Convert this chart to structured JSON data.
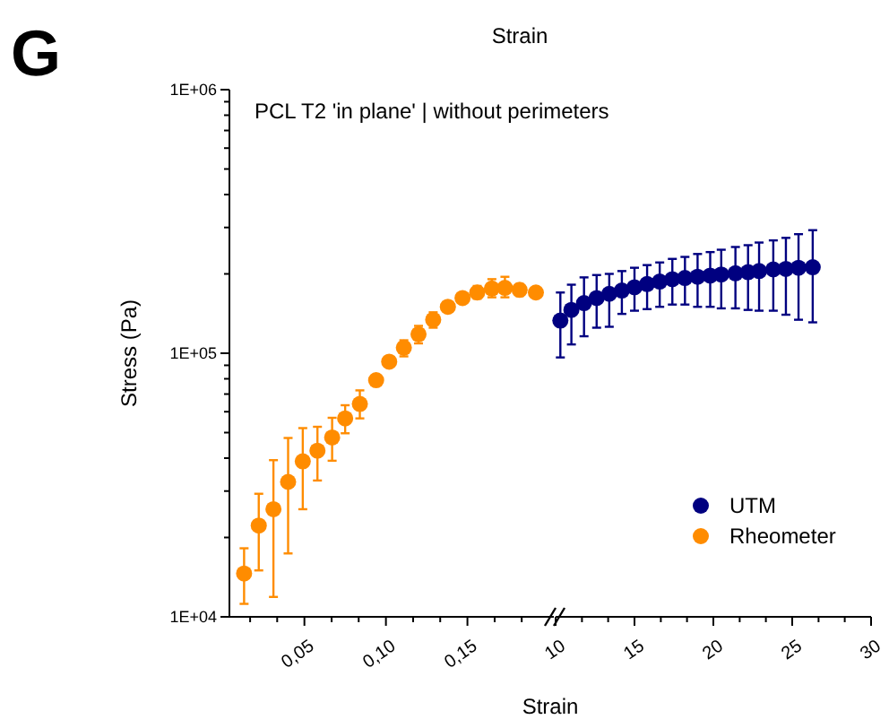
{
  "chart_data": [
    {
      "type": "scatter",
      "title": "PCL T2 'in plane' | without perimeters",
      "xlabel": "Strain",
      "ylabel": "Stress (Pa)",
      "log": "y",
      "marker": "circle",
      "annotations": [
        "G",
        "Strain"
      ],
      "xlim": [
        0.004,
        0.203
      ],
      "xticks": [
        {
          "value": 0.0167,
          "label": null
        },
        {
          "value": 0.0333,
          "label": null
        },
        {
          "value": 0.05,
          "label": "0,05"
        },
        {
          "value": 0.0667,
          "label": null
        },
        {
          "value": 0.0833,
          "label": null
        },
        {
          "value": 0.1,
          "label": "0,10"
        },
        {
          "value": 0.1167,
          "label": null
        },
        {
          "value": 0.1333,
          "label": null
        },
        {
          "value": 0.15,
          "label": "0,15"
        },
        {
          "value": 0.1667,
          "label": null
        },
        {
          "value": 0.1833,
          "label": null
        }
      ],
      "ylim": [
        10000,
        1000000
      ],
      "yticks": [
        {
          "value": 10000,
          "label": "1E+04"
        },
        {
          "value": 20000,
          "label": null
        },
        {
          "value": 30000,
          "label": null
        },
        {
          "value": 40000,
          "label": null
        },
        {
          "value": 50000,
          "label": null
        },
        {
          "value": 60000,
          "label": null
        },
        {
          "value": 70000,
          "label": null
        },
        {
          "value": 80000,
          "label": null
        },
        {
          "value": 90000,
          "label": null
        },
        {
          "value": 100000,
          "label": "1E+05"
        },
        {
          "value": 200000,
          "label": null
        },
        {
          "value": 300000,
          "label": null
        },
        {
          "value": 400000,
          "label": null
        },
        {
          "value": 500000,
          "label": null
        },
        {
          "value": 600000,
          "label": null
        },
        {
          "value": 700000,
          "label": null
        },
        {
          "value": 800000,
          "label": null
        },
        {
          "value": 900000,
          "label": null
        },
        {
          "value": 1000000,
          "label": "1E+06"
        }
      ],
      "series": [
        {
          "name": "Rheometer",
          "color": "#ff8c00",
          "x": [
            0.013,
            0.022,
            0.031,
            0.04,
            0.049,
            0.058,
            0.067,
            0.075,
            0.084,
            0.094,
            0.102,
            0.111,
            0.12,
            0.129,
            0.138,
            0.147,
            0.156,
            0.165,
            0.173,
            0.182,
            0.192
          ],
          "values": [
            14600,
            22200,
            25600,
            32500,
            38900,
            42700,
            47900,
            56600,
            64200,
            79000,
            92900,
            105000,
            118000,
            134000,
            150000,
            162000,
            170000,
            176000,
            177000,
            174000,
            170000
          ],
          "errors": [
            [
              11200,
              18200
            ],
            [
              15000,
              29300
            ],
            [
              11900,
              39300
            ],
            [
              17400,
              47700
            ],
            [
              25600,
              52000
            ],
            [
              32900,
              52600
            ],
            [
              39100,
              56900
            ],
            [
              49700,
              63500
            ],
            [
              56600,
              72300
            ],
            null,
            null,
            [
              97300,
              112000
            ],
            [
              109000,
              127000
            ],
            [
              125000,
              143000
            ],
            null,
            null,
            [
              161000,
              180000
            ],
            [
              163000,
              191000
            ],
            [
              163000,
              195000
            ],
            [
              165000,
              183000
            ],
            null
          ]
        }
      ]
    },
    {
      "type": "scatter",
      "log": "y",
      "marker": "circle",
      "legend": "bottom right",
      "tick_labels": "x",
      "xlim": [
        10,
        30
      ],
      "xticks": [
        {
          "value": 10,
          "label": "10"
        },
        {
          "value": 11.67,
          "label": null
        },
        {
          "value": 13.33,
          "label": null
        },
        {
          "value": 15,
          "label": "15"
        },
        {
          "value": 16.67,
          "label": null
        },
        {
          "value": 18.33,
          "label": null
        },
        {
          "value": 20,
          "label": "20"
        },
        {
          "value": 21.67,
          "label": null
        },
        {
          "value": 23.33,
          "label": null
        },
        {
          "value": 25,
          "label": "25"
        },
        {
          "value": 26.67,
          "label": null
        },
        {
          "value": 28.33,
          "label": null
        },
        {
          "value": 30,
          "label": "30"
        }
      ],
      "ylim": [
        10000,
        1000000
      ],
      "series": [
        {
          "name": "UTM",
          "color": "#000080",
          "x": [
            10.3,
            11.0,
            11.8,
            12.6,
            13.4,
            14.2,
            15.0,
            15.8,
            16.6,
            17.4,
            18.2,
            19.0,
            19.8,
            20.5,
            21.4,
            22.2,
            22.9,
            23.8,
            24.6,
            25.4,
            26.3
          ],
          "values": [
            133000,
            146000,
            155000,
            162000,
            168000,
            173000,
            178000,
            183000,
            187000,
            191000,
            193000,
            195000,
            197000,
            199000,
            201000,
            203000,
            205000,
            208000,
            209000,
            211000,
            212000
          ],
          "errors": [
            [
              96400,
              170000
            ],
            [
              108000,
              182000
            ],
            [
              116000,
              194000
            ],
            [
              125000,
              198000
            ],
            [
              126000,
              200000
            ],
            [
              141000,
              205000
            ],
            [
              145000,
              211000
            ],
            [
              147000,
              216000
            ],
            [
              150000,
              221000
            ],
            [
              153000,
              228000
            ],
            [
              153000,
              232000
            ],
            [
              150000,
              238000
            ],
            [
              150000,
              242000
            ],
            [
              148000,
              247000
            ],
            [
              148000,
              253000
            ],
            [
              146000,
              257000
            ],
            [
              145000,
              263000
            ],
            [
              145000,
              268000
            ],
            [
              140000,
              274000
            ],
            [
              134000,
              283000
            ],
            [
              131000,
              293000
            ]
          ]
        }
      ]
    }
  ]
}
